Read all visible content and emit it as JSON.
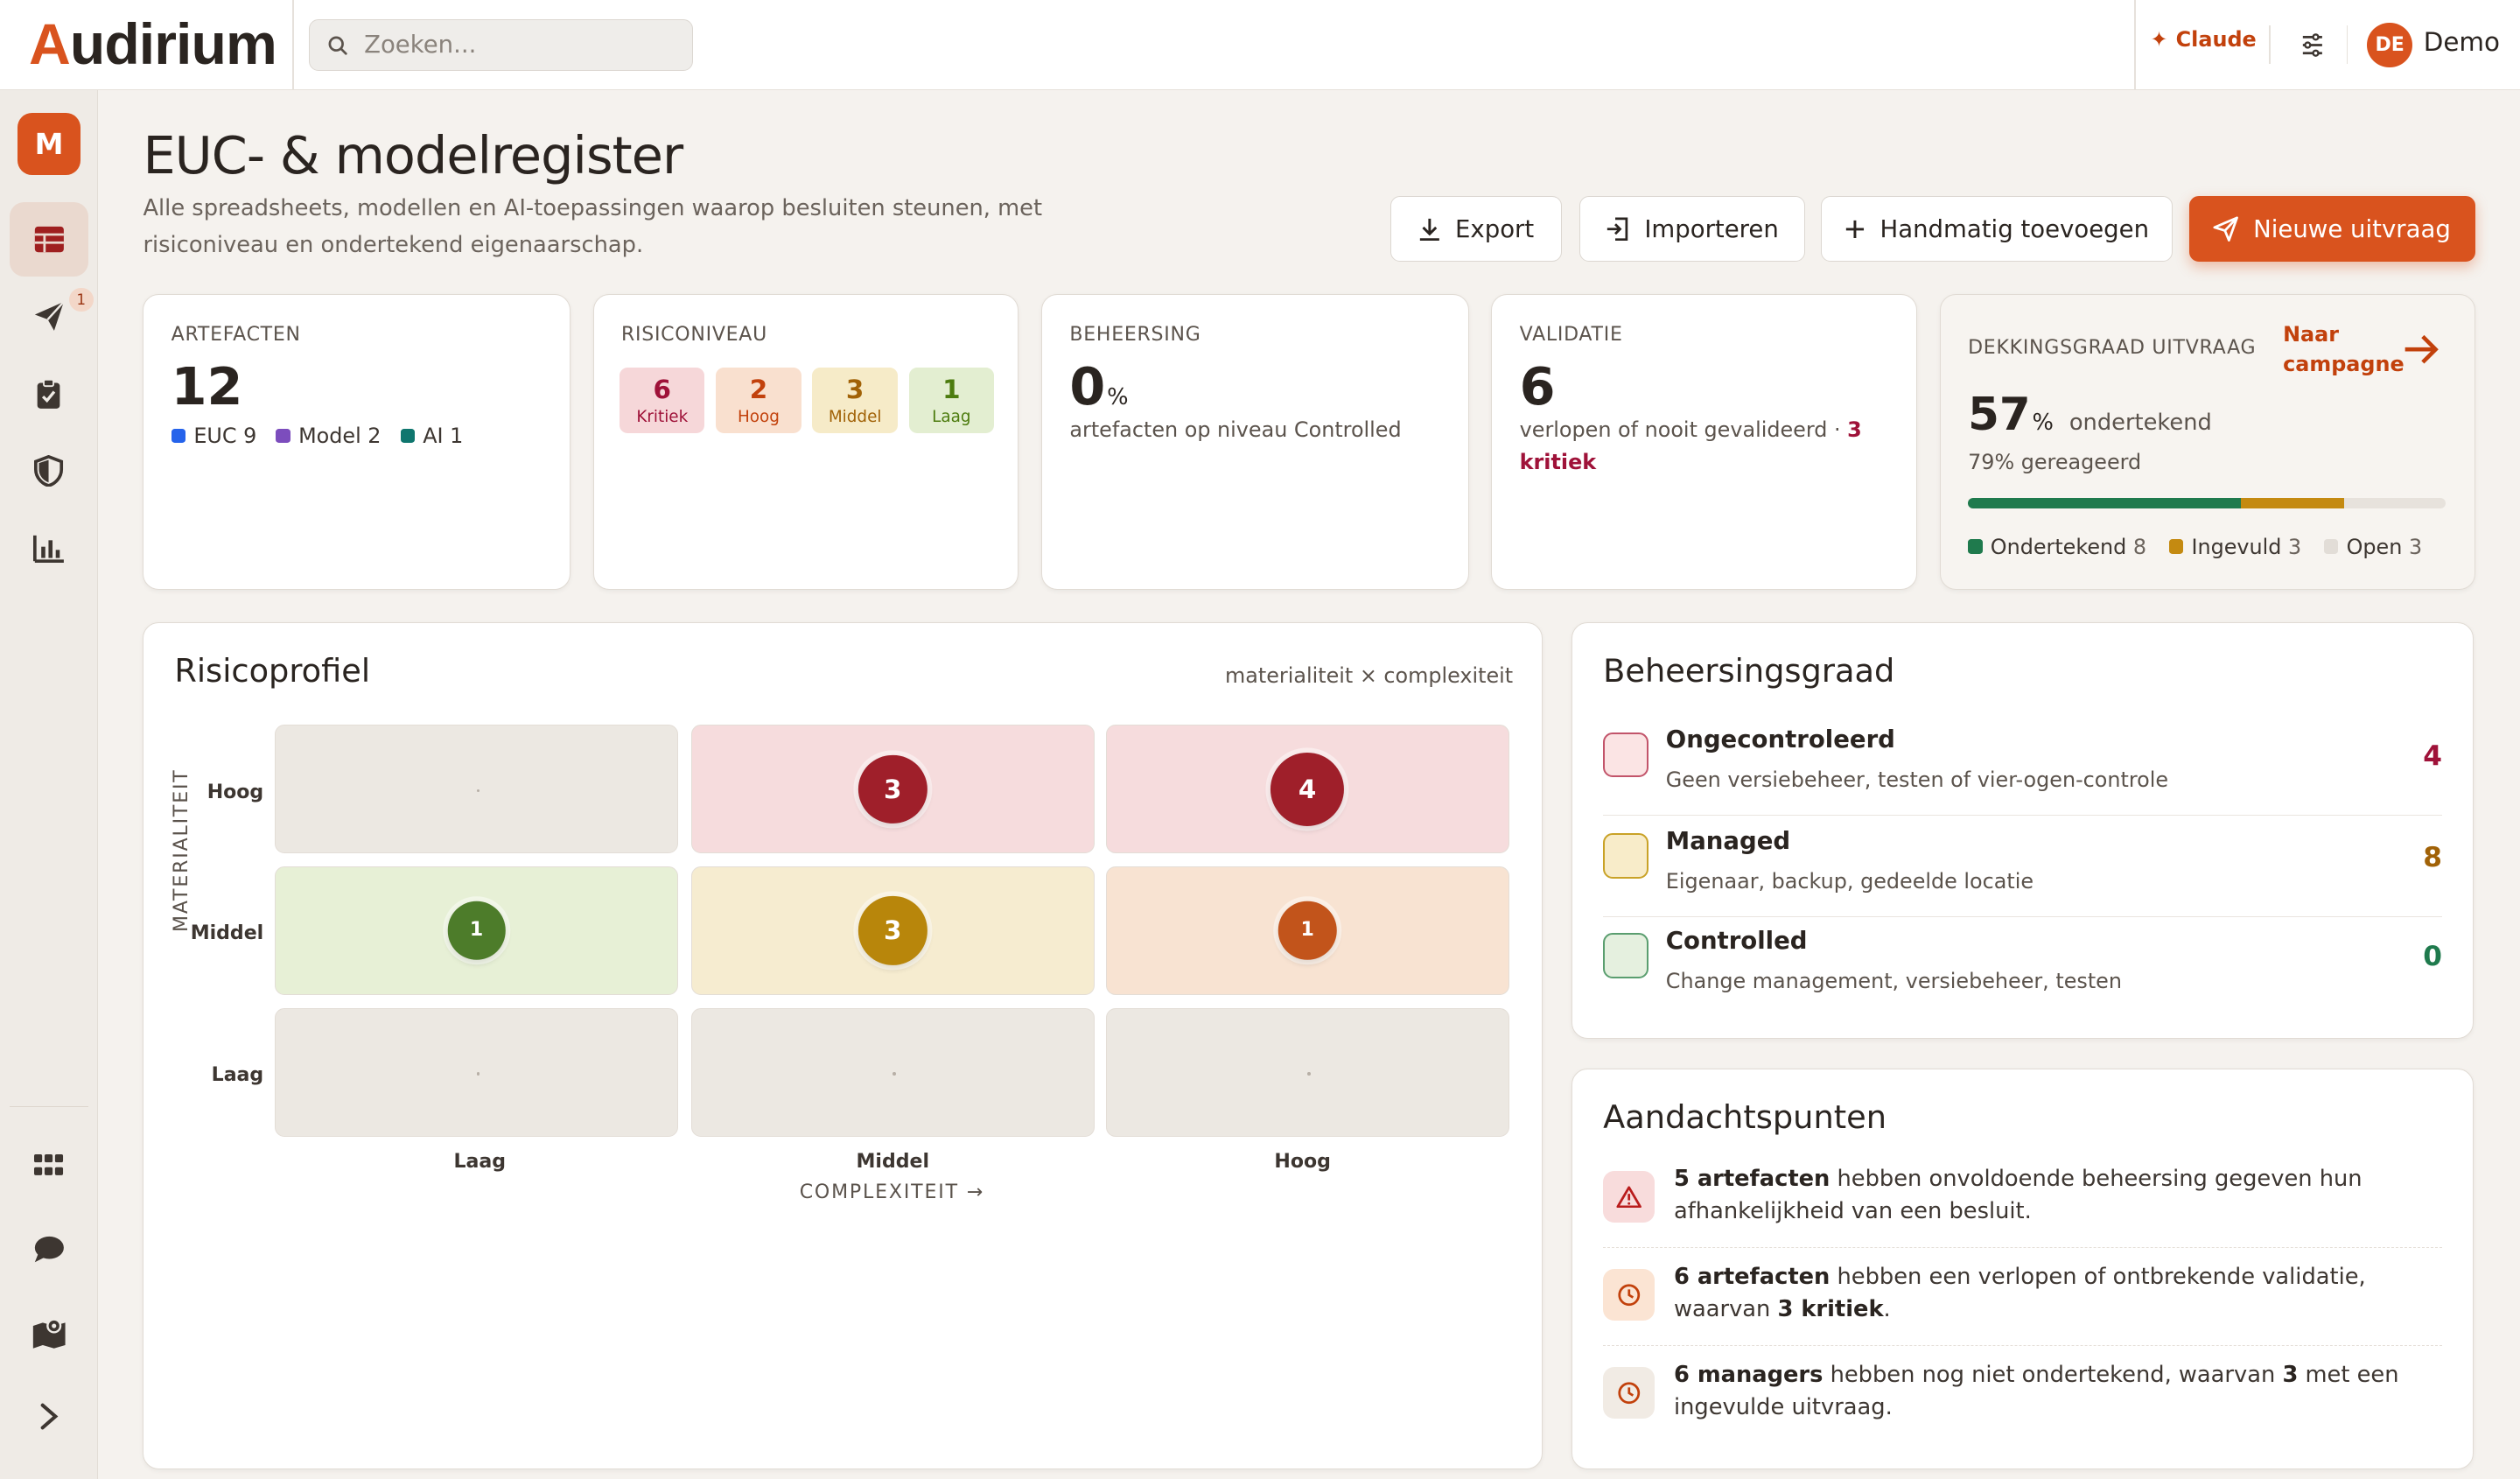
{
  "app": {
    "logo": "Audirium",
    "search_placeholder": "Zoeken...",
    "assistant": "Claude",
    "user_initials": "DE",
    "user_name": "Demo",
    "workspace_initial": "M",
    "notification_count": "1"
  },
  "colors": {
    "accent": "#d9531e",
    "critical": "#9f1239",
    "high": "#c2410c",
    "medium": "#a16207",
    "low": "#4d7c0f",
    "signed": "#1f7a4d"
  },
  "sidebar": {
    "items": [
      {
        "icon": "table-icon",
        "active": true
      },
      {
        "icon": "paper-plane-icon",
        "active": false
      },
      {
        "icon": "clipboard-check-icon",
        "active": false
      },
      {
        "icon": "shield-icon",
        "active": false
      },
      {
        "icon": "bar-chart-icon",
        "active": false
      },
      {
        "icon": "grid-icon",
        "active": false
      },
      {
        "icon": "chat-icon",
        "active": false
      },
      {
        "icon": "map-icon",
        "active": false
      },
      {
        "icon": "chevron-right-icon",
        "active": false
      }
    ]
  },
  "page": {
    "title": "EUC- & modelregister",
    "subtitle": "Alle spreadsheets, modellen en AI-toepassingen waarop besluiten steunen, met risiconiveau en ondertekend eigenaarschap."
  },
  "actions": {
    "export": "Export",
    "import": "Importeren",
    "manual": "Handmatig toevoegen",
    "new_request": "Nieuwe uitvraag"
  },
  "kpis": {
    "artefacts": {
      "label": "ARTEFACTEN",
      "value": "12",
      "euc": "EUC",
      "euc_n": "9",
      "model": "Model",
      "model_n": "2",
      "ai": "AI",
      "ai_n": "1"
    },
    "risk": {
      "label": "RISICONIVEAU",
      "levels": [
        {
          "n": "6",
          "label": "Kritiek"
        },
        {
          "n": "2",
          "label": "Hoog"
        },
        {
          "n": "3",
          "label": "Middel"
        },
        {
          "n": "1",
          "label": "Laag"
        }
      ]
    },
    "control": {
      "label": "BEHEERSING",
      "value": "0",
      "unit": "%",
      "text": "artefacten op niveau Controlled"
    },
    "validation": {
      "label": "VALIDATIE",
      "value": "6",
      "text": "verlopen of nooit gevalideerd ·",
      "critical": "3 kritiek"
    },
    "coverage": {
      "label": "DEKKINGSGRAAD UITVRAAG",
      "link": "Naar campagne",
      "value": "57",
      "unit": "%",
      "suffix": "ondertekend",
      "reacted": "79% gereageerd",
      "signed_label": "Ondertekend",
      "signed_n": "8",
      "filled_label": "Ingevuld",
      "filled_n": "3",
      "open_label": "Open",
      "open_n": "3"
    }
  },
  "risk_profile": {
    "title": "Risicoprofiel",
    "axis_note": "materialiteit × complexiteit",
    "y_title": "MATERIALITEIT",
    "x_title": "COMPLEXITEIT →",
    "rows": [
      "Hoog",
      "Middel",
      "Laag"
    ],
    "cols": [
      "Laag",
      "Middel",
      "Hoog"
    ],
    "matrix": [
      [
        "",
        "3",
        "4"
      ],
      [
        "1",
        "3",
        "1"
      ],
      [
        "",
        "",
        ""
      ]
    ]
  },
  "control_levels": {
    "title": "Beheersingsgraad",
    "items": [
      {
        "name": "Ongecontroleerd",
        "desc": "Geen versiebeheer, testen of vier-ogen-controle",
        "count": "4"
      },
      {
        "name": "Managed",
        "desc": "Eigenaar, backup, gedeelde locatie",
        "count": "8"
      },
      {
        "name": "Controlled",
        "desc": "Change management, versiebeheer, testen",
        "count": "0"
      }
    ]
  },
  "attention": {
    "title": "Aandachtspunten",
    "items": [
      {
        "bold": "5 artefacten",
        "text": " hebben onvoldoende beheersing gegeven hun afhankelijkheid van een besluit."
      },
      {
        "bold": "6 artefacten",
        "text": " hebben een verlopen of ontbrekende validatie, waarvan ",
        "bold2": "3 kritiek",
        "tail": "."
      },
      {
        "bold": "6 managers",
        "text": " hebben nog niet ondertekend, waarvan ",
        "bold2": "3",
        "tail": " met een ingevulde uitvraag."
      }
    ]
  }
}
